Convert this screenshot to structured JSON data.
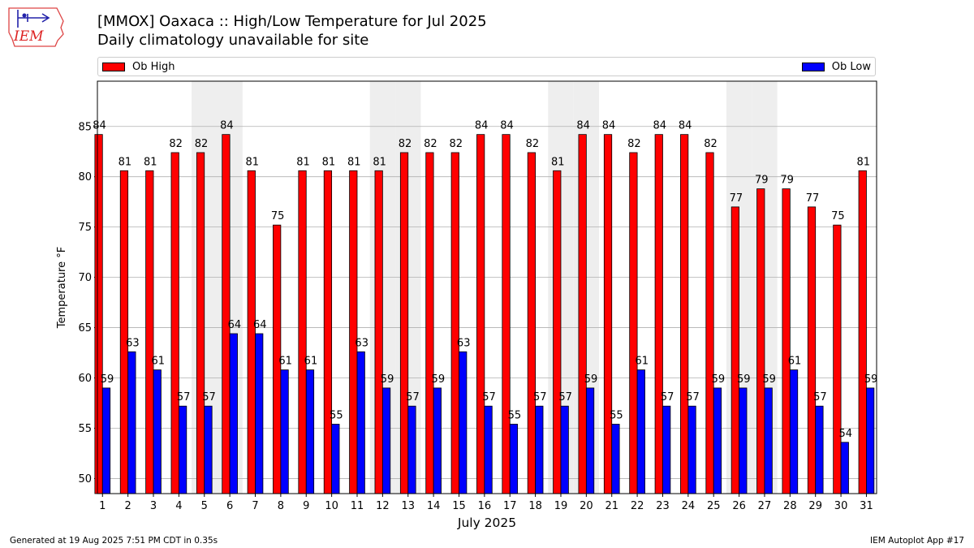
{
  "logo": {
    "text": "IEM"
  },
  "header": {
    "title": "[MMOX] Oaxaca :: High/Low Temperature for Jul 2025",
    "subtitle": "Daily climatology unavailable for site"
  },
  "colors": {
    "high": "#ff0000",
    "low": "#0000ff",
    "weekend_shade": "#eeeeee",
    "grid": "#b0b0b0"
  },
  "chart_data": {
    "type": "bar",
    "title": "[MMOX] Oaxaca :: High/Low Temperature for Jul 2025",
    "subtitle": "Daily climatology unavailable for site",
    "xlabel": "July 2025",
    "ylabel": "Temperature °F",
    "ylim": [
      48.5,
      89.5
    ],
    "yticks": [
      50,
      55,
      60,
      65,
      70,
      75,
      80,
      85
    ],
    "grid": true,
    "legend_placement": "top",
    "shaded_days": [
      5,
      6,
      12,
      13,
      19,
      20,
      26,
      27
    ],
    "categories": [
      "1",
      "2",
      "3",
      "4",
      "5",
      "6",
      "7",
      "8",
      "9",
      "10",
      "11",
      "12",
      "13",
      "14",
      "15",
      "16",
      "17",
      "18",
      "19",
      "20",
      "21",
      "22",
      "23",
      "24",
      "25",
      "26",
      "27",
      "28",
      "29",
      "30",
      "31"
    ],
    "series": [
      {
        "name": "Ob High",
        "color": "#ff0000",
        "values": [
          84.2,
          80.6,
          80.6,
          82.4,
          82.4,
          84.2,
          80.6,
          75.2,
          80.6,
          80.6,
          80.6,
          80.6,
          82.4,
          82.4,
          82.4,
          84.2,
          84.2,
          82.4,
          80.6,
          84.2,
          84.2,
          82.4,
          84.2,
          84.2,
          82.4,
          77.0,
          78.8,
          78.8,
          77.0,
          75.2,
          80.6
        ],
        "labels": [
          "84",
          "81",
          "81",
          "82",
          "82",
          "84",
          "81",
          "75",
          "81",
          "81",
          "81",
          "81",
          "82",
          "82",
          "82",
          "84",
          "84",
          "82",
          "81",
          "84",
          "84",
          "82",
          "84",
          "84",
          "82",
          "77",
          "79",
          "79",
          "77",
          "75",
          "81"
        ]
      },
      {
        "name": "Ob Low",
        "color": "#0000ff",
        "values": [
          59.0,
          62.6,
          60.8,
          57.2,
          57.2,
          64.4,
          64.4,
          60.8,
          60.8,
          55.4,
          62.6,
          59.0,
          57.2,
          59.0,
          62.6,
          57.2,
          55.4,
          57.2,
          57.2,
          59.0,
          55.4,
          60.8,
          57.2,
          57.2,
          59.0,
          59.0,
          59.0,
          60.8,
          57.2,
          53.6,
          59.0
        ],
        "labels": [
          "59",
          "63",
          "61",
          "57",
          "57",
          "64",
          "64",
          "61",
          "61",
          "55",
          "63",
          "59",
          "57",
          "59",
          "63",
          "57",
          "55",
          "57",
          "57",
          "59",
          "55",
          "61",
          "57",
          "57",
          "59",
          "59",
          "59",
          "61",
          "57",
          "54",
          "59"
        ]
      }
    ]
  },
  "footer": {
    "generated": "Generated at 19 Aug 2025 7:51 PM CDT in 0.35s",
    "app": "IEM Autoplot App #17"
  }
}
